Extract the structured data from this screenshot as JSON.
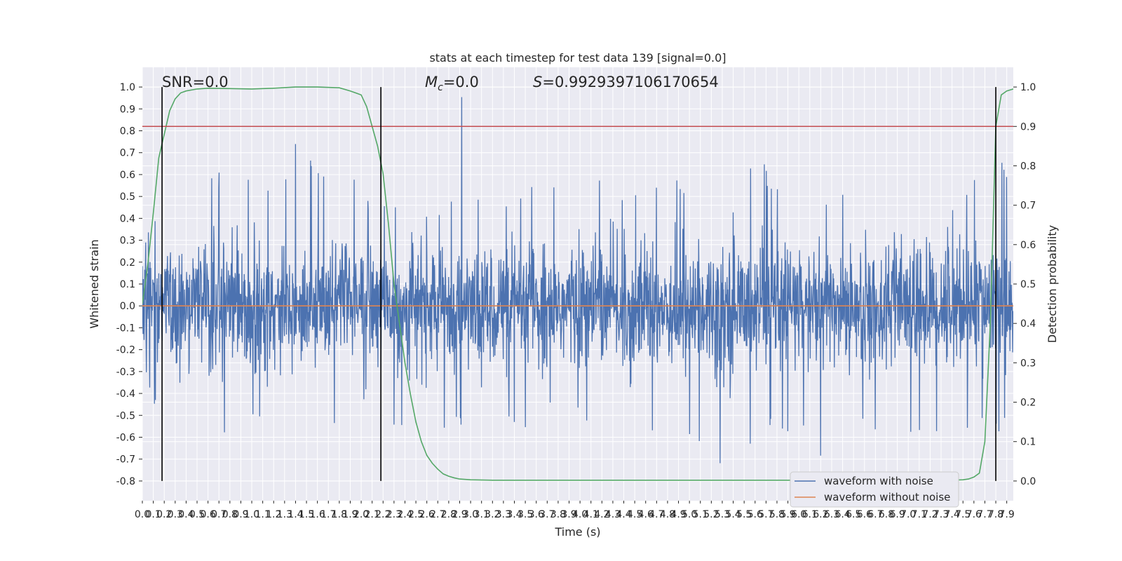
{
  "chart_data": {
    "type": "line",
    "title": "stats at each timestep for test data 139 [signal=0.0]",
    "xlabel": "Time (s)",
    "ylabel": "Whitened strain",
    "y2label": "Detection probability",
    "xlim": [
      0.0,
      7.96
    ],
    "ylim": [
      -0.89,
      1.09
    ],
    "y2lim": [
      -0.05,
      1.05
    ],
    "x_ticks": [
      0.0,
      0.1,
      0.2,
      0.3,
      0.4,
      0.5,
      0.6,
      0.7,
      0.8,
      0.9,
      1.0,
      1.1,
      1.2,
      1.3,
      1.4,
      1.5,
      1.6,
      1.7,
      1.8,
      1.9,
      2.0,
      2.1,
      2.2,
      2.3,
      2.4,
      2.5,
      2.6,
      2.7,
      2.8,
      2.9,
      3.0,
      3.1,
      3.2,
      3.3,
      3.4,
      3.5,
      3.6,
      3.7,
      3.8,
      3.9,
      4.0,
      4.1,
      4.2,
      4.3,
      4.4,
      4.5,
      4.6,
      4.7,
      4.8,
      4.9,
      5.0,
      5.1,
      5.2,
      5.3,
      5.4,
      5.5,
      5.6,
      5.7,
      5.8,
      5.9,
      6.0,
      6.1,
      6.2,
      6.3,
      6.4,
      6.5,
      6.6,
      6.7,
      6.8,
      6.9,
      7.0,
      7.1,
      7.2,
      7.3,
      7.4,
      7.5,
      7.6,
      7.7,
      7.8,
      7.9
    ],
    "y_ticks": [
      -0.8,
      -0.7,
      -0.6,
      -0.5,
      -0.4,
      -0.3,
      -0.2,
      -0.1,
      0.0,
      0.1,
      0.2,
      0.3,
      0.4,
      0.5,
      0.6,
      0.7,
      0.8,
      0.9,
      1.0
    ],
    "y2_ticks": [
      0.0,
      0.1,
      0.2,
      0.3,
      0.4,
      0.5,
      0.6,
      0.7,
      0.8,
      0.9,
      1.0
    ],
    "grid": true,
    "legend_position": "bottom-right",
    "series": [
      {
        "name": "waveform with noise",
        "axis": "left",
        "color": "#4c72b0",
        "envelope_approx": {
          "x": [
            0.0,
            0.2,
            0.4,
            0.6,
            0.8,
            1.0,
            1.2,
            1.4,
            1.6,
            1.8,
            2.0,
            2.2,
            2.4,
            2.6,
            2.8,
            2.93,
            3.0,
            3.2,
            3.4,
            3.6,
            3.8,
            4.0,
            4.2,
            4.4,
            4.6,
            4.8,
            5.0,
            5.2,
            5.4,
            5.6,
            5.8,
            6.0,
            6.2,
            6.4,
            6.6,
            6.8,
            7.0,
            7.2,
            7.4,
            7.6,
            7.8,
            7.96
          ],
          "upper": [
            0.3,
            0.45,
            0.5,
            0.68,
            0.55,
            0.6,
            0.55,
            0.75,
            0.68,
            0.65,
            0.55,
            0.45,
            0.55,
            0.58,
            0.5,
            1.0,
            0.55,
            0.58,
            0.5,
            0.6,
            0.55,
            0.6,
            0.6,
            0.55,
            0.5,
            0.6,
            0.55,
            0.58,
            0.5,
            0.75,
            0.55,
            0.6,
            0.75,
            0.55,
            0.58,
            0.5,
            0.6,
            0.55,
            0.5,
            0.6,
            0.77,
            0.55
          ],
          "lower": [
            -0.45,
            -0.5,
            -0.55,
            -0.68,
            -0.6,
            -0.55,
            -0.6,
            -0.65,
            -0.72,
            -0.55,
            -0.5,
            -0.5,
            -0.63,
            -0.55,
            -0.6,
            -0.55,
            -0.6,
            -0.55,
            -0.6,
            -0.55,
            -0.5,
            -0.55,
            -0.67,
            -0.6,
            -0.55,
            -0.76,
            -0.6,
            -0.8,
            -0.6,
            -0.65,
            -0.55,
            -0.6,
            -0.74,
            -0.65,
            -0.6,
            -0.55,
            -0.6,
            -0.65,
            -0.55,
            -0.6,
            -0.6,
            -0.45
          ]
        }
      },
      {
        "name": "waveform without noise",
        "axis": "left",
        "color": "#dd8452",
        "x": [
          0.0,
          7.96
        ],
        "y": [
          0.0,
          0.0
        ]
      },
      {
        "name": "",
        "axis": "right",
        "color": "#55a868",
        "x": [
          0.0,
          0.05,
          0.1,
          0.15,
          0.2,
          0.25,
          0.3,
          0.35,
          0.4,
          0.5,
          0.6,
          0.8,
          1.0,
          1.2,
          1.4,
          1.6,
          1.8,
          1.9,
          2.0,
          2.05,
          2.1,
          2.15,
          2.2,
          2.25,
          2.3,
          2.35,
          2.4,
          2.45,
          2.5,
          2.55,
          2.6,
          2.65,
          2.7,
          2.75,
          2.8,
          2.85,
          2.9,
          3.0,
          3.2,
          3.5,
          4.0,
          5.0,
          6.0,
          7.0,
          7.4,
          7.5,
          7.55,
          7.6,
          7.65,
          7.7,
          7.75,
          7.8,
          7.85,
          7.9,
          7.96
        ],
        "y": [
          0.45,
          0.55,
          0.68,
          0.82,
          0.88,
          0.94,
          0.97,
          0.985,
          0.99,
          0.995,
          0.997,
          0.996,
          0.995,
          0.997,
          1.0,
          1.0,
          0.998,
          0.99,
          0.98,
          0.95,
          0.9,
          0.85,
          0.78,
          0.65,
          0.5,
          0.4,
          0.3,
          0.22,
          0.15,
          0.1,
          0.065,
          0.045,
          0.03,
          0.018,
          0.012,
          0.008,
          0.005,
          0.003,
          0.002,
          0.002,
          0.002,
          0.002,
          0.002,
          0.002,
          0.002,
          0.003,
          0.005,
          0.01,
          0.02,
          0.1,
          0.4,
          0.9,
          0.98,
          0.99,
          0.995
        ]
      },
      {
        "name": "",
        "axis": "right",
        "color": "#c44e52",
        "x": [
          0.0,
          7.96
        ],
        "y": [
          0.9,
          0.9
        ]
      }
    ],
    "vertical_lines": [
      {
        "x": 0.18,
        "ymin": -0.8,
        "ymax": 1.0,
        "color": "#000000"
      },
      {
        "x": 2.18,
        "ymin": -0.8,
        "ymax": 1.0,
        "color": "#000000"
      },
      {
        "x": 7.8,
        "ymin": -0.8,
        "ymax": 1.0,
        "color": "#000000"
      }
    ],
    "annotations": [
      {
        "id": "snr",
        "text": "SNR=0.0"
      },
      {
        "id": "mc",
        "text_main": "M",
        "text_sub": "c",
        "text_rest": "=0.0"
      },
      {
        "id": "s",
        "text_main": "S",
        "text_rest": "=0.9929397106170654"
      }
    ]
  }
}
